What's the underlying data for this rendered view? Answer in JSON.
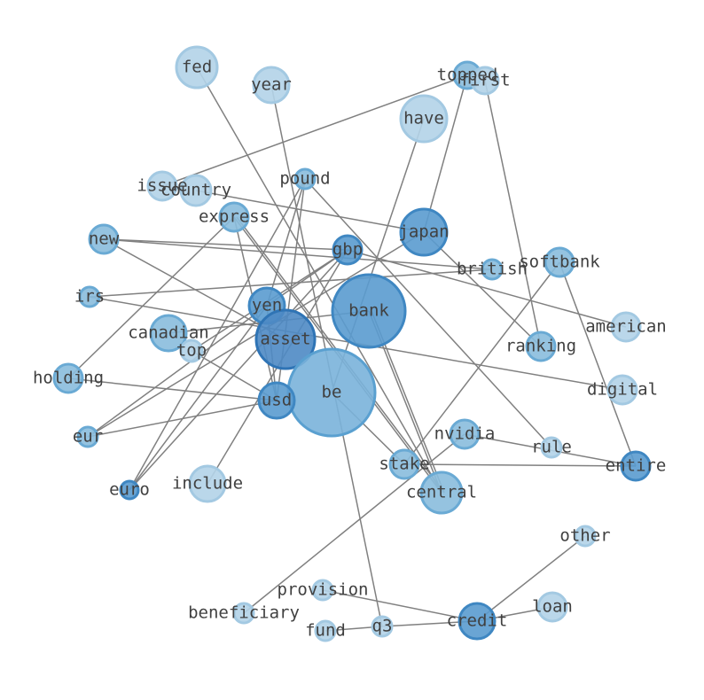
{
  "nodes": [
    {
      "label": "fed"
    },
    {
      "label": "year"
    },
    {
      "label": "topped"
    },
    {
      "label": "first"
    },
    {
      "label": "have"
    },
    {
      "label": "issue"
    },
    {
      "label": "country"
    },
    {
      "label": "pound"
    },
    {
      "label": "express"
    },
    {
      "label": "japan"
    },
    {
      "label": "new"
    },
    {
      "label": "gbp"
    },
    {
      "label": "softbank"
    },
    {
      "label": "british"
    },
    {
      "label": "irs"
    },
    {
      "label": "bank"
    },
    {
      "label": "yen"
    },
    {
      "label": "canadian"
    },
    {
      "label": "asset"
    },
    {
      "label": "american"
    },
    {
      "label": "ranking"
    },
    {
      "label": "top"
    },
    {
      "label": "holding"
    },
    {
      "label": "digital"
    },
    {
      "label": "be"
    },
    {
      "label": "usd"
    },
    {
      "label": "eur"
    },
    {
      "label": "nvidia"
    },
    {
      "label": "rule"
    },
    {
      "label": "stake"
    },
    {
      "label": "entire"
    },
    {
      "label": "include"
    },
    {
      "label": "euro"
    },
    {
      "label": "central"
    },
    {
      "label": "other"
    },
    {
      "label": "provision"
    },
    {
      "label": "loan"
    },
    {
      "label": "beneficiary"
    },
    {
      "label": "credit"
    },
    {
      "label": "fund"
    },
    {
      "label": "q3"
    }
  ]
}
